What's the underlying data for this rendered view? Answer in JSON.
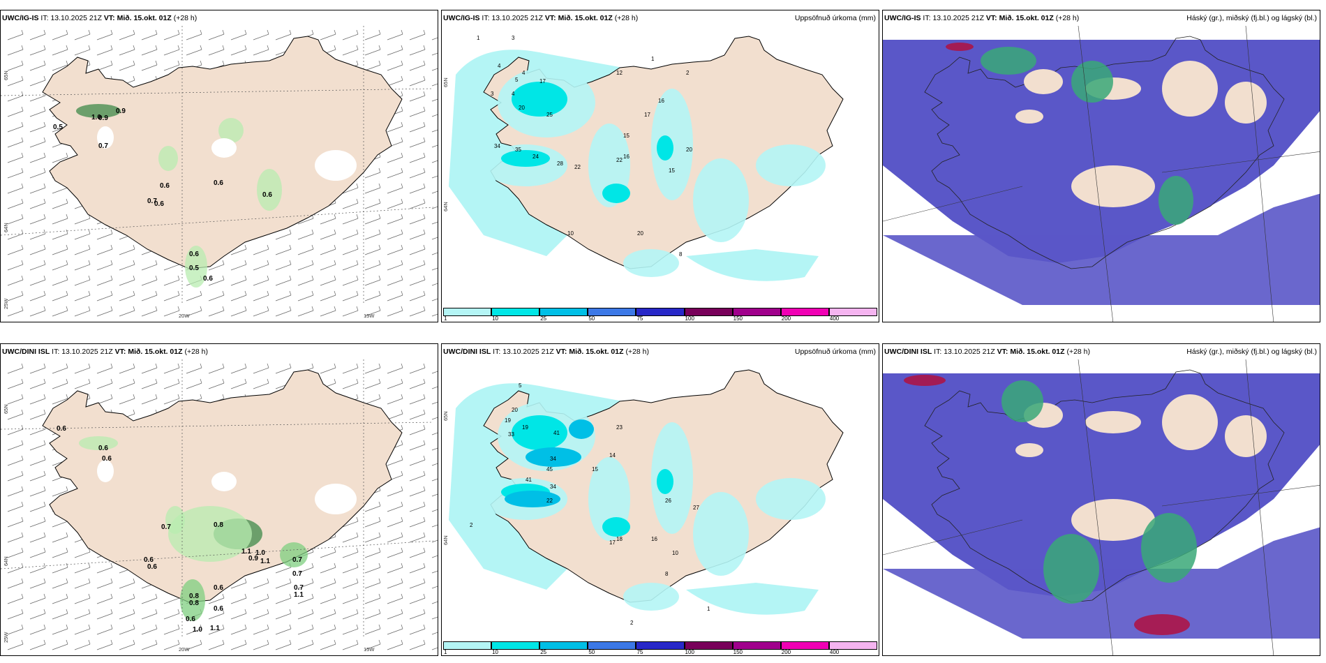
{
  "panels": [
    {
      "id": "p1",
      "model": "UWC/IG-IS",
      "it_label": "IT:",
      "it": "13.10.2025 21Z",
      "vt_label": "VT:",
      "vt": "Mið. 15.okt. 01Z",
      "lead": "(+28 h)",
      "right_title": "",
      "kind": "wind",
      "values": [
        {
          "text": "0.5"
        },
        {
          "text": "0.9"
        },
        {
          "text": "0.9"
        },
        {
          "text": "0.7"
        },
        {
          "text": "1.0"
        },
        {
          "text": "0.6"
        },
        {
          "text": "0.7"
        },
        {
          "text": "0.6"
        },
        {
          "text": "0.6"
        },
        {
          "text": "0.6"
        },
        {
          "text": "0.6"
        },
        {
          "text": "0.5"
        },
        {
          "text": "0.6"
        }
      ],
      "axis": {
        "lon": [
          "20W",
          "15W"
        ],
        "lat": [
          "65N",
          "64N",
          "25W"
        ]
      }
    },
    {
      "id": "p2",
      "model": "UWC/IG-IS",
      "it_label": "IT:",
      "it": "13.10.2025 21Z",
      "vt_label": "VT:",
      "vt": "Mið. 15.okt. 01Z",
      "lead": "(+28 h)",
      "right_title": "Uppsöfnuð úrkoma (mm)",
      "kind": "precip",
      "values": [
        {
          "text": "1"
        },
        {
          "text": "3"
        },
        {
          "text": "4"
        },
        {
          "text": "5"
        },
        {
          "text": "4"
        },
        {
          "text": "3"
        },
        {
          "text": "4"
        },
        {
          "text": "17"
        },
        {
          "text": "20"
        },
        {
          "text": "25"
        },
        {
          "text": "34"
        },
        {
          "text": "35"
        },
        {
          "text": "24"
        },
        {
          "text": "28"
        },
        {
          "text": "22"
        },
        {
          "text": "22"
        },
        {
          "text": "16"
        },
        {
          "text": "15"
        },
        {
          "text": "15"
        },
        {
          "text": "17"
        },
        {
          "text": "20"
        },
        {
          "text": "16"
        },
        {
          "text": "10"
        },
        {
          "text": "20"
        },
        {
          "text": "8"
        },
        {
          "text": "12"
        },
        {
          "text": "2"
        },
        {
          "text": "1"
        }
      ],
      "axis": {
        "lon": [],
        "lat": [
          "65N",
          "64N"
        ]
      },
      "colorbar": {
        "colors": [
          "#b4f5f5",
          "#00e6e6",
          "#00bfe6",
          "#3c78e6",
          "#2828c8",
          "#78005a",
          "#a0008c",
          "#f000b4",
          "#f5b4f0"
        ],
        "ticks": [
          "1",
          "10",
          "25",
          "50",
          "75",
          "100",
          "150",
          "200",
          "400"
        ]
      }
    },
    {
      "id": "p3",
      "model": "UWC/IG-IS",
      "it_label": "IT:",
      "it": "13.10.2025 21Z",
      "vt_label": "VT:",
      "vt": "Mið. 15.okt. 01Z",
      "lead": "(+28 h)",
      "right_title": "Háský (gr.), miðský (fj.bl.) og lágský (bl.)",
      "kind": "cloud"
    },
    {
      "id": "p4",
      "model": "UWC/DINI ISL",
      "it_label": "IT:",
      "it": "13.10.2025 21Z",
      "vt_label": "VT:",
      "vt": "Mið. 15.okt. 01Z",
      "lead": "(+28 h)",
      "right_title": "",
      "kind": "wind",
      "values": [
        {
          "text": "0.6"
        },
        {
          "text": "0.6"
        },
        {
          "text": "0.6"
        },
        {
          "text": "0.7"
        },
        {
          "text": "0.8"
        },
        {
          "text": "0.6"
        },
        {
          "text": "0.6"
        },
        {
          "text": "0.7"
        },
        {
          "text": "1.1"
        },
        {
          "text": "1.0"
        },
        {
          "text": "0.9"
        },
        {
          "text": "1.1"
        },
        {
          "text": "0.6"
        },
        {
          "text": "0.7"
        },
        {
          "text": "0.7"
        },
        {
          "text": "1.1"
        },
        {
          "text": "0.8"
        },
        {
          "text": "0.8"
        },
        {
          "text": "0.6"
        },
        {
          "text": "0.6"
        },
        {
          "text": "1.0"
        },
        {
          "text": "1.1"
        }
      ],
      "axis": {
        "lon": [
          "20W",
          "15W"
        ],
        "lat": [
          "65N",
          "64N",
          "25W"
        ]
      }
    },
    {
      "id": "p5",
      "model": "UWC/DINI ISL",
      "it_label": "IT:",
      "it": "13.10.2025 21Z",
      "vt_label": "VT:",
      "vt": "Mið. 15.okt. 01Z",
      "lead": "(+28 h)",
      "right_title": "Uppsöfnuð úrkoma (mm)",
      "kind": "precip",
      "values": [
        {
          "text": "2"
        },
        {
          "text": "5"
        },
        {
          "text": "19"
        },
        {
          "text": "20"
        },
        {
          "text": "33"
        },
        {
          "text": "19"
        },
        {
          "text": "41"
        },
        {
          "text": "34"
        },
        {
          "text": "45"
        },
        {
          "text": "41"
        },
        {
          "text": "34"
        },
        {
          "text": "22"
        },
        {
          "text": "23"
        },
        {
          "text": "14"
        },
        {
          "text": "15"
        },
        {
          "text": "26"
        },
        {
          "text": "27"
        },
        {
          "text": "16"
        },
        {
          "text": "18"
        },
        {
          "text": "17"
        },
        {
          "text": "10"
        },
        {
          "text": "8"
        },
        {
          "text": "2"
        },
        {
          "text": "1"
        }
      ],
      "axis": {
        "lon": [],
        "lat": [
          "65N",
          "64N"
        ]
      },
      "colorbar": {
        "colors": [
          "#b4f5f5",
          "#00e6e6",
          "#00bfe6",
          "#3c78e6",
          "#2828c8",
          "#78005a",
          "#a0008c",
          "#f000b4",
          "#f5b4f0"
        ],
        "ticks": [
          "1",
          "10",
          "25",
          "50",
          "75",
          "100",
          "150",
          "200",
          "400"
        ]
      }
    },
    {
      "id": "p6",
      "model": "UWC/DINI ISL",
      "it_label": "IT:",
      "it": "13.10.2025 21Z",
      "vt_label": "VT:",
      "vt": "Mið. 15.okt. 01Z",
      "lead": "(+28 h)",
      "right_title": "Háský (gr.), miðský (fj.bl.) og lágský (bl.)",
      "kind": "cloud"
    }
  ],
  "colors": {
    "land": "#f2dfcf",
    "coast": "#000000",
    "precip_light": "#b4f5f5",
    "precip_mid": "#00e6e6",
    "precip_high": "#00bfe6",
    "wind_green_light": "#b8ecb0",
    "wind_green_mid": "#7fcf80",
    "wind_green_dark": "#3f8a4a",
    "cloud_low": "#5a57c8",
    "cloud_mid_green": "#3aa878",
    "cloud_high_red": "#b01040"
  }
}
